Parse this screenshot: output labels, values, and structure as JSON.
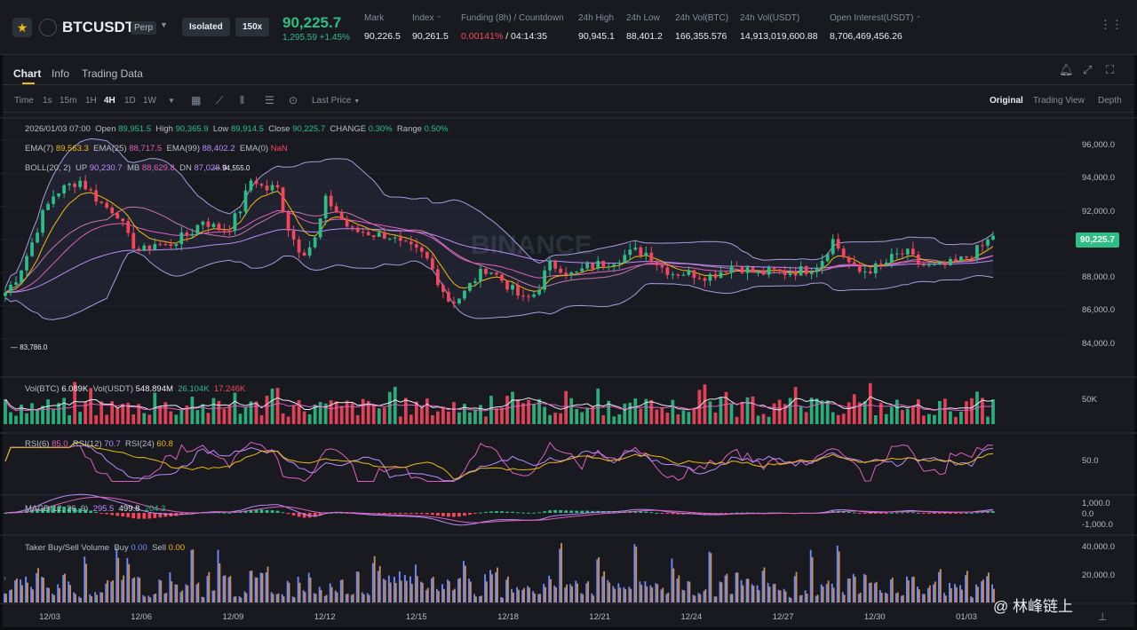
{
  "header": {
    "symbol": "BTCUSDT",
    "contract": "Perp",
    "margin_mode": "Isolated",
    "leverage": "150x",
    "last_price": "90,225.7",
    "change": "1,295.59 +1.45%",
    "stats": [
      {
        "label": "Mark",
        "value": "90,226.5"
      },
      {
        "label": "Index",
        "value": "90,261.5"
      },
      {
        "label": "Funding (8h) / Countdown",
        "value_rate": "0.00141%",
        "value_time": "/ 04:14:35"
      },
      {
        "label": "24h High",
        "value": "90,945.1"
      },
      {
        "label": "24h Low",
        "value": "88,401.2"
      },
      {
        "label": "24h Vol(BTC)",
        "value": "166,355.576"
      },
      {
        "label": "24h Vol(USDT)",
        "value": "14,913,019,600.88"
      },
      {
        "label": "Open Interest(USDT)",
        "value": "8,706,469,456.26"
      }
    ]
  },
  "tabs": [
    "Chart",
    "Info",
    "Trading Data"
  ],
  "toolbar": {
    "timeframes": [
      "Time",
      "1s",
      "15m",
      "1H",
      "4H",
      "1D",
      "1W"
    ],
    "active_timeframe": "4H",
    "price_type": "Last Price",
    "views": [
      "Original",
      "Trading View",
      "Depth"
    ],
    "active_view": "Original"
  },
  "ohlc": {
    "date": "2026/01/03 07:00",
    "open_label": "Open",
    "open": "89,951.5",
    "high_label": "High",
    "high": "90,365.9",
    "low_label": "Low",
    "low": "89,914.5",
    "close_label": "Close",
    "close": "90,225.7",
    "change_label": "CHANGE",
    "change": "0.30%",
    "range_label": "Range",
    "range": "0.50%"
  },
  "ema": {
    "ema7_label": "EMA(7)",
    "ema7": "89,563.3",
    "ema25_label": "EMA(25)",
    "ema25": "88,717.5",
    "ema99_label": "EMA(99)",
    "ema99": "88,402.2",
    "ema0_label": "EMA(0)",
    "ema0": "NaN"
  },
  "boll": {
    "label": "BOLL(20, 2)",
    "up_label": "UP",
    "up": "90,230.7",
    "mb_label": "MB",
    "mb": "88,629.8",
    "dn_label": "DN",
    "dn": "87,028.9",
    "high_marker": "94,555.0"
  },
  "volume": {
    "label": "Vol(BTC)",
    "btc": "6.089K",
    "usdt_label": "Vol(USDT)",
    "usdt": "548.894M",
    "ma1": "26.104K",
    "ma2": "17.246K",
    "axis": "50K"
  },
  "rsi": {
    "rsi6_label": "RSI(6)",
    "rsi6": "85.0",
    "rsi12_label": "RSI(12)",
    "rsi12": "70.7",
    "rsi24_label": "RSI(24)",
    "rsi24": "60.8",
    "axis": "50.0"
  },
  "macd": {
    "label": "MACD(12, 26, 9)",
    "v1": "295.5",
    "v2": "499.8",
    "v3": "204.3",
    "axis": [
      "1,000.0",
      "0.0",
      "-1,000.0"
    ]
  },
  "taker": {
    "label": "Taker Buy/Sell Volume",
    "buy_label": "Buy",
    "buy": "0.00",
    "sell_label": "Sell",
    "sell": "0.00",
    "axis": [
      "40,000.0",
      "20,000.0"
    ]
  },
  "price_axis": [
    "96,000.0",
    "94,000.0",
    "92,000.0",
    "90,000.0",
    "88,000.0",
    "86,000.0",
    "84,000.0"
  ],
  "low_marker": "83,786.0",
  "watermark_text": "BINANCE",
  "date_axis": [
    "12/03",
    "12/06",
    "12/09",
    "12/12",
    "12/15",
    "12/18",
    "12/21",
    "12/24",
    "12/27",
    "12/30",
    "01/03"
  ],
  "colors": {
    "up": "#2ebd85",
    "down": "#f6465d",
    "ema7": "#f0b90b",
    "ema25": "#e05fbf",
    "ema99": "#b98cff",
    "accent": "#f0b90b"
  },
  "footer_watermark": "@ 林峰链上",
  "chart_data": {
    "type": "candlestick",
    "interval": "4H",
    "x_range": [
      "12/03",
      "01/03"
    ],
    "y_range": [
      83786.0,
      94555.0
    ],
    "last_close": 90225.7,
    "close_path": [
      86800,
      87800,
      89500,
      91500,
      92800,
      93200,
      93600,
      92800,
      92000,
      91700,
      90000,
      89200,
      89800,
      89600,
      90000,
      90400,
      91200,
      90700,
      90600,
      91800,
      93800,
      93000,
      93200,
      90500,
      89200,
      89800,
      92500,
      91500,
      90500,
      90500,
      90300,
      90300,
      89700,
      89400,
      89000,
      87600,
      86200,
      86600,
      87600,
      88300,
      87700,
      87000,
      86300,
      86800,
      88500,
      88300,
      87800,
      88300,
      88500,
      88700,
      89000,
      89300,
      89200,
      88400,
      88000,
      88000,
      87900,
      87800,
      88100,
      88500,
      88200,
      87900,
      88100,
      88000,
      88100,
      88200,
      88600,
      90000,
      88900,
      88000,
      88200,
      88400,
      89000,
      89200,
      88500,
      88300,
      88400,
      88600,
      89000,
      89500,
      90200
    ]
  }
}
